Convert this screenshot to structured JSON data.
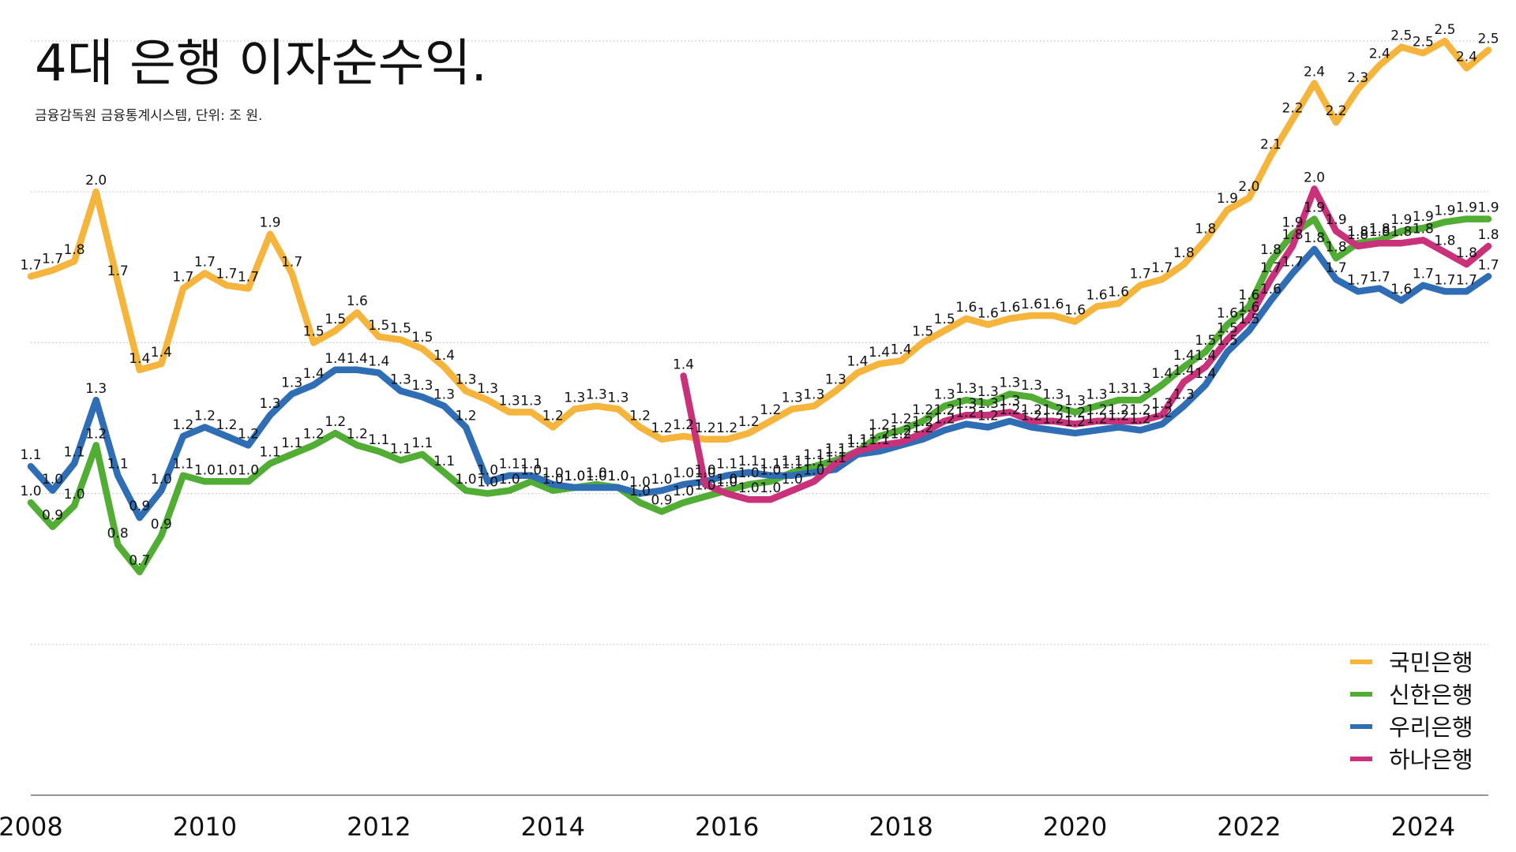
{
  "chart_data": {
    "type": "line",
    "title": "4대 은행 이자순수익.",
    "subtitle": "금융감독원 금융통계시스템, 단위: 조 원.",
    "x": [
      "2008Q1",
      "2008Q2",
      "2008Q3",
      "2008Q4",
      "2009Q1",
      "2009Q2",
      "2009Q3",
      "2009Q4",
      "2010Q1",
      "2010Q2",
      "2010Q3",
      "2010Q4",
      "2011Q1",
      "2011Q2",
      "2011Q3",
      "2011Q4",
      "2012Q1",
      "2012Q2",
      "2012Q3",
      "2012Q4",
      "2013Q1",
      "2013Q2",
      "2013Q3",
      "2013Q4",
      "2014Q1",
      "2014Q2",
      "2014Q3",
      "2014Q4",
      "2015Q1",
      "2015Q2",
      "2015Q3",
      "2015Q4",
      "2016Q1",
      "2016Q2",
      "2016Q3",
      "2016Q4",
      "2017Q1",
      "2017Q2",
      "2017Q3",
      "2017Q4",
      "2018Q1",
      "2018Q2",
      "2018Q3",
      "2018Q4",
      "2019Q1",
      "2019Q2",
      "2019Q3",
      "2019Q4",
      "2020Q1",
      "2020Q2",
      "2020Q3",
      "2020Q4",
      "2021Q1",
      "2021Q2",
      "2021Q3",
      "2021Q4",
      "2022Q1",
      "2022Q2",
      "2022Q3",
      "2022Q4",
      "2023Q1",
      "2023Q2",
      "2023Q3",
      "2023Q4",
      "2024Q1",
      "2024Q2",
      "2024Q3",
      "2024Q4"
    ],
    "xlim": [
      "2008Q1",
      "2024Q4"
    ],
    "x_ticks": [
      "2008",
      "2010",
      "2012",
      "2014",
      "2016",
      "2018",
      "2020",
      "2022",
      "2024"
    ],
    "ylim": [
      0,
      2.5
    ],
    "y_grid": [
      0.5,
      1.0,
      1.5,
      2.0,
      2.5
    ],
    "grid": true,
    "data_labels": true,
    "legend": "bottom-right",
    "series": [
      {
        "name": "국민은행",
        "color": "#F5B43C",
        "values": [
          1.72,
          1.74,
          1.77,
          2.0,
          1.7,
          1.41,
          1.43,
          1.68,
          1.73,
          1.69,
          1.68,
          1.86,
          1.73,
          1.5,
          1.54,
          1.6,
          1.52,
          1.51,
          1.48,
          1.42,
          1.34,
          1.31,
          1.27,
          1.27,
          1.22,
          1.28,
          1.29,
          1.28,
          1.22,
          1.18,
          1.19,
          1.18,
          1.18,
          1.2,
          1.24,
          1.28,
          1.29,
          1.34,
          1.4,
          1.43,
          1.44,
          1.5,
          1.54,
          1.58,
          1.56,
          1.58,
          1.59,
          1.59,
          1.57,
          1.62,
          1.63,
          1.69,
          1.71,
          1.76,
          1.84,
          1.94,
          1.98,
          2.12,
          2.24,
          2.36,
          2.23,
          2.34,
          2.42,
          2.48,
          2.46,
          2.5,
          2.41,
          2.47
        ]
      },
      {
        "name": "신한은행",
        "color": "#52AD34",
        "values": [
          0.97,
          0.89,
          0.96,
          1.16,
          0.83,
          0.74,
          0.86,
          1.06,
          1.04,
          1.04,
          1.04,
          1.1,
          1.13,
          1.16,
          1.2,
          1.16,
          1.14,
          1.11,
          1.13,
          1.07,
          1.01,
          1.0,
          1.01,
          1.04,
          1.01,
          1.02,
          1.03,
          1.02,
          0.97,
          0.94,
          0.97,
          0.99,
          1.01,
          1.03,
          1.04,
          1.07,
          1.09,
          1.11,
          1.14,
          1.19,
          1.21,
          1.24,
          1.29,
          1.31,
          1.3,
          1.33,
          1.32,
          1.29,
          1.27,
          1.29,
          1.31,
          1.31,
          1.36,
          1.42,
          1.47,
          1.56,
          1.62,
          1.77,
          1.86,
          1.91,
          1.78,
          1.83,
          1.84,
          1.87,
          1.88,
          1.9,
          1.91,
          1.91
        ]
      },
      {
        "name": "우리은행",
        "color": "#2F6EB5",
        "values": [
          1.09,
          1.01,
          1.1,
          1.31,
          1.06,
          0.92,
          1.01,
          1.19,
          1.22,
          1.19,
          1.16,
          1.26,
          1.33,
          1.36,
          1.41,
          1.41,
          1.4,
          1.34,
          1.32,
          1.29,
          1.22,
          1.04,
          1.06,
          1.06,
          1.03,
          1.02,
          1.02,
          1.02,
          1.0,
          1.01,
          1.03,
          1.04,
          1.06,
          1.07,
          1.06,
          1.06,
          1.07,
          1.08,
          1.13,
          1.14,
          1.16,
          1.18,
          1.21,
          1.23,
          1.22,
          1.24,
          1.22,
          1.21,
          1.2,
          1.21,
          1.22,
          1.21,
          1.23,
          1.29,
          1.36,
          1.47,
          1.54,
          1.64,
          1.73,
          1.81,
          1.71,
          1.67,
          1.68,
          1.64,
          1.69,
          1.67,
          1.67,
          1.72
        ]
      },
      {
        "name": "하나은행",
        "color": "#C9317A",
        "values": [
          null,
          null,
          null,
          null,
          null,
          null,
          null,
          null,
          null,
          null,
          null,
          null,
          null,
          null,
          null,
          null,
          null,
          null,
          null,
          null,
          null,
          null,
          null,
          null,
          null,
          null,
          null,
          null,
          null,
          null,
          1.39,
          1.03,
          1.0,
          0.98,
          0.98,
          1.01,
          1.04,
          1.1,
          1.14,
          1.16,
          1.17,
          1.2,
          1.24,
          1.26,
          1.26,
          1.27,
          1.24,
          1.24,
          1.23,
          1.24,
          1.24,
          1.24,
          1.26,
          1.37,
          1.42,
          1.51,
          1.58,
          1.71,
          1.82,
          2.01,
          1.87,
          1.82,
          1.83,
          1.83,
          1.84,
          1.8,
          1.76,
          1.82
        ]
      }
    ]
  }
}
